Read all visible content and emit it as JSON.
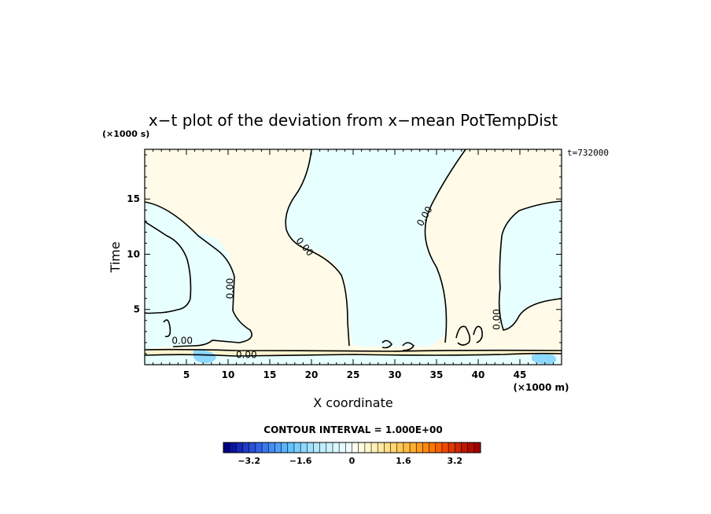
{
  "chart_data": {
    "type": "heatmap",
    "title": "x−t plot of the deviation from x−mean PotTempDist",
    "time_stamp": "t=732000",
    "xlabel": "X coordinate",
    "x_unit": "(×1000 m)",
    "ylabel": "Time",
    "y_unit": "(×1000 s)",
    "xlim": [
      0,
      50
    ],
    "ylim": [
      0,
      19.5
    ],
    "x_ticks": [
      5,
      10,
      15,
      20,
      25,
      30,
      35,
      40,
      45
    ],
    "y_ticks": [
      5,
      10,
      15
    ],
    "contour_interval_text": "CONTOUR INTERVAL = 1.000E+00",
    "contour_labels": [
      {
        "text": "0.00",
        "x": 4.5,
        "y": 1.9
      },
      {
        "text": "0.00",
        "x": 10.6,
        "y": 6.9
      },
      {
        "text": "0.00",
        "x": 18.9,
        "y": 10.5
      },
      {
        "text": "0.00",
        "x": 33.9,
        "y": 13.3
      },
      {
        "text": "0.00",
        "x": 42.6,
        "y": 4.1
      },
      {
        "text": "0.00",
        "x": 12.2,
        "y": 0.6
      }
    ],
    "colorbar": {
      "min": -4.0,
      "max": 4.0,
      "step": 0.2,
      "tick_values": [
        -3.2,
        -1.6,
        0,
        1.6,
        3.2
      ],
      "tick_labels": [
        "−3.2",
        "−1.6",
        "0",
        "1.6",
        "3.2"
      ],
      "colors": [
        "#000080",
        "#0a14a0",
        "#1428b4",
        "#1e3cc8",
        "#2850d8",
        "#3264e6",
        "#3c78f0",
        "#468cf5",
        "#50a0fa",
        "#5ab4ff",
        "#64c3ff",
        "#78ceff",
        "#8cd8ff",
        "#a0e0ff",
        "#b4e8ff",
        "#c0eeff",
        "#cdf3ff",
        "#d9f8ff",
        "#e4fbff",
        "#f0fdff",
        "#fffef0",
        "#fffbe0",
        "#fff6cc",
        "#fff0b8",
        "#ffe9a0",
        "#ffe088",
        "#ffd670",
        "#ffca58",
        "#ffbc40",
        "#ffad30",
        "#ff9c20",
        "#ff8a10",
        "#ff7500",
        "#f86000",
        "#f04a00",
        "#e03800",
        "#d02800",
        "#c01800",
        "#b00c00",
        "#a00000"
      ]
    },
    "field_colors": {
      "positive": "#fffbe8",
      "negative": "#e8ffff",
      "strong_negative": "#8cd8ff",
      "positive_band": "#fff4cc"
    }
  }
}
